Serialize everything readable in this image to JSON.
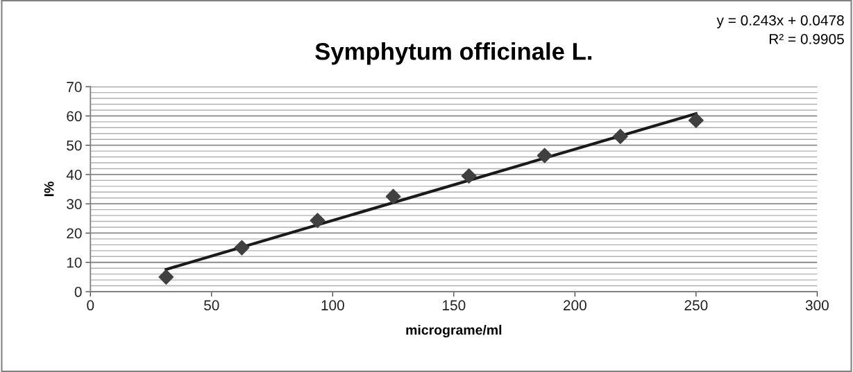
{
  "chart_data": {
    "type": "scatter",
    "title": "Symphytum officinale L.",
    "xlabel": "micrograme/ml",
    "ylabel": "I%",
    "annotations": [
      "y = 0.243x + 0.0478\nR² = 0.9905"
    ],
    "x": [
      31.25,
      62.5,
      93.75,
      125,
      156.25,
      187.5,
      218.75,
      250
    ],
    "series": [
      {
        "color": "#404040",
        "marker": "diamond",
        "values": [
          5,
          15,
          24.3,
          32.5,
          39.5,
          46.5,
          53,
          58.5
        ]
      },
      {
        "type": "line",
        "color": "#1a1a1a",
        "marker": "none",
        "line_style": "solid",
        "x": [
          31.25,
          250
        ],
        "values": [
          7.6,
          60.8
        ]
      }
    ],
    "xlim": [
      0,
      300
    ],
    "xticks": [
      0,
      50,
      100,
      150,
      200,
      250,
      300
    ],
    "ylim": [
      0,
      70
    ],
    "yticks": [
      0,
      {
        "value": 2,
        "label": null
      },
      {
        "value": 4,
        "label": null
      },
      {
        "value": 6,
        "label": null
      },
      {
        "value": 8,
        "label": null
      },
      10,
      {
        "value": 12,
        "label": null
      },
      {
        "value": 14,
        "label": null
      },
      {
        "value": 16,
        "label": null
      },
      {
        "value": 18,
        "label": null
      },
      20,
      {
        "value": 22,
        "label": null
      },
      {
        "value": 24,
        "label": null
      },
      {
        "value": 26,
        "label": null
      },
      {
        "value": 28,
        "label": null
      },
      30,
      {
        "value": 32,
        "label": null
      },
      {
        "value": 34,
        "label": null
      },
      {
        "value": 36,
        "label": null
      },
      {
        "value": 38,
        "label": null
      },
      40,
      {
        "value": 42,
        "label": null
      },
      {
        "value": 44,
        "label": null
      },
      {
        "value": 46,
        "label": null
      },
      {
        "value": 48,
        "label": null
      },
      50,
      {
        "value": 52,
        "label": null
      },
      {
        "value": 54,
        "label": null
      },
      {
        "value": 56,
        "label": null
      },
      {
        "value": 58,
        "label": null
      },
      60,
      {
        "value": 62,
        "label": null
      },
      {
        "value": 64,
        "label": null
      },
      {
        "value": 66,
        "label": null
      },
      {
        "value": 68,
        "label": null
      },
      70
    ],
    "grid": "y"
  }
}
